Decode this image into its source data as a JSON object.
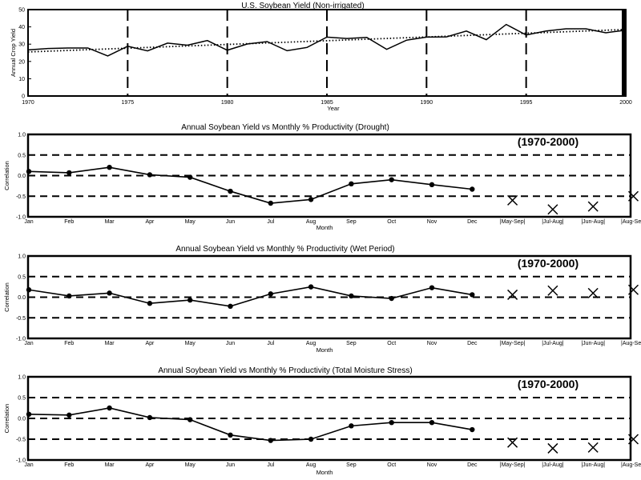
{
  "chart_data": [
    {
      "type": "line",
      "title": "U.S. Soybean Yield (Non-irrigated)",
      "xlabel": "Year",
      "ylabel": "Annual Crop Yield",
      "xlim": [
        1970,
        2000
      ],
      "ylim": [
        0,
        50
      ],
      "x_ticks": [
        1970,
        1975,
        1980,
        1985,
        1990,
        1995,
        2000
      ],
      "y_ticks": [
        0,
        10,
        20,
        30,
        40,
        50
      ],
      "x_tick_labels": [
        "1970",
        "1975",
        "1980",
        "1985",
        "1990",
        "1995",
        "2000"
      ],
      "y_tick_labels": [
        "0",
        "10",
        "20",
        "30",
        "40",
        "50"
      ],
      "vlines": [
        1975,
        1980,
        1985,
        1990,
        1995
      ],
      "series": [
        {
          "style": "solid",
          "x": [
            1970,
            1971,
            1972,
            1973,
            1974,
            1975,
            1976,
            1977,
            1978,
            1979,
            1980,
            1981,
            1982,
            1983,
            1984,
            1985,
            1986,
            1987,
            1988,
            1989,
            1990,
            1991,
            1992,
            1993,
            1994,
            1995,
            1996,
            1997,
            1998,
            1999,
            2000
          ],
          "values": [
            26.7,
            27.5,
            27.8,
            27.8,
            23.2,
            28.8,
            26.1,
            30.6,
            29.4,
            32.1,
            26.5,
            30.1,
            31.5,
            26.2,
            28.1,
            34.1,
            33.3,
            33.9,
            27.0,
            32.3,
            34.1,
            34.2,
            37.6,
            32.6,
            41.4,
            35.3,
            37.6,
            38.9,
            38.9,
            36.6,
            38.1
          ]
        },
        {
          "style": "dotted",
          "x": [
            1970,
            2000
          ],
          "values": [
            25.5,
            38.5
          ]
        }
      ]
    },
    {
      "type": "line",
      "title": "Annual Soybean Yield vs Monthly % Productivity (Drought)",
      "xlabel": "Month",
      "ylabel": "Correlation",
      "period_label": "(1970-2000)",
      "ylim": [
        -1,
        1
      ],
      "y_ticks": [
        -1,
        -0.5,
        0,
        0.5,
        1
      ],
      "y_tick_labels": [
        "-1.0",
        "-0.5",
        "0.0",
        "0.5",
        "1.0"
      ],
      "categories": [
        "Jan",
        "Feb",
        "Mar",
        "Apr",
        "May",
        "Jun",
        "Jul",
        "Aug",
        "Sep",
        "Oct",
        "Nov",
        "Dec",
        "|May-Sep|",
        "|Jul-Aug|",
        "|Jun-Aug|",
        "|Aug-Sep|"
      ],
      "hlines": [
        0.5,
        0,
        -0.5
      ],
      "monthly_values": [
        0.1,
        0.07,
        0.2,
        0.02,
        -0.04,
        -0.38,
        -0.67,
        -0.58,
        -0.2,
        -0.1,
        -0.22,
        -0.33
      ],
      "period_values": [
        -0.6,
        -0.82,
        -0.75,
        -0.5
      ]
    },
    {
      "type": "line",
      "title": "Annual Soybean Yield vs Monthly % Productivity (Wet Period)",
      "xlabel": "Month",
      "ylabel": "Correlation",
      "period_label": "(1970-2000)",
      "ylim": [
        -1,
        1
      ],
      "y_ticks": [
        -1,
        -0.5,
        0,
        0.5,
        1
      ],
      "y_tick_labels": [
        "-1.0",
        "-0.5",
        "0.0",
        "0.5",
        "1.0"
      ],
      "categories": [
        "Jan",
        "Feb",
        "Mar",
        "Apr",
        "May",
        "Jun",
        "Jul",
        "Aug",
        "Sep",
        "Oct",
        "Nov",
        "Dec",
        "|May-Sep|",
        "|Jul-Aug|",
        "|Jun-Aug|",
        "|Aug-Sep|"
      ],
      "hlines": [
        0.5,
        0,
        -0.5
      ],
      "monthly_values": [
        0.18,
        0.03,
        0.1,
        -0.15,
        -0.07,
        -0.22,
        0.08,
        0.25,
        0.03,
        -0.03,
        0.23,
        0.06
      ],
      "period_values": [
        0.06,
        0.16,
        0.1,
        0.18
      ]
    },
    {
      "type": "line",
      "title": "Annual Soybean Yield vs Monthly % Productivity (Total Moisture Stress)",
      "xlabel": "Month",
      "ylabel": "Correlation",
      "period_label": "(1970-2000)",
      "ylim": [
        -1,
        1
      ],
      "y_ticks": [
        -1,
        -0.5,
        0,
        0.5,
        1
      ],
      "y_tick_labels": [
        "-1.0",
        "-0.5",
        "0.0",
        "0.5",
        "1.0"
      ],
      "categories": [
        "Jan",
        "Feb",
        "Mar",
        "Apr",
        "May",
        "Jun",
        "Jul",
        "Aug",
        "Sep",
        "Oct",
        "Nov",
        "Dec",
        "|May-Sep|",
        "|Jul-Aug|",
        "|Jun-Aug|",
        "|Aug-Sep|"
      ],
      "hlines": [
        0.5,
        0,
        -0.5
      ],
      "monthly_values": [
        0.1,
        0.08,
        0.25,
        0.02,
        -0.03,
        -0.4,
        -0.53,
        -0.5,
        -0.18,
        -0.1,
        -0.1,
        -0.27
      ],
      "period_values": [
        -0.58,
        -0.72,
        -0.7,
        -0.5
      ]
    }
  ]
}
